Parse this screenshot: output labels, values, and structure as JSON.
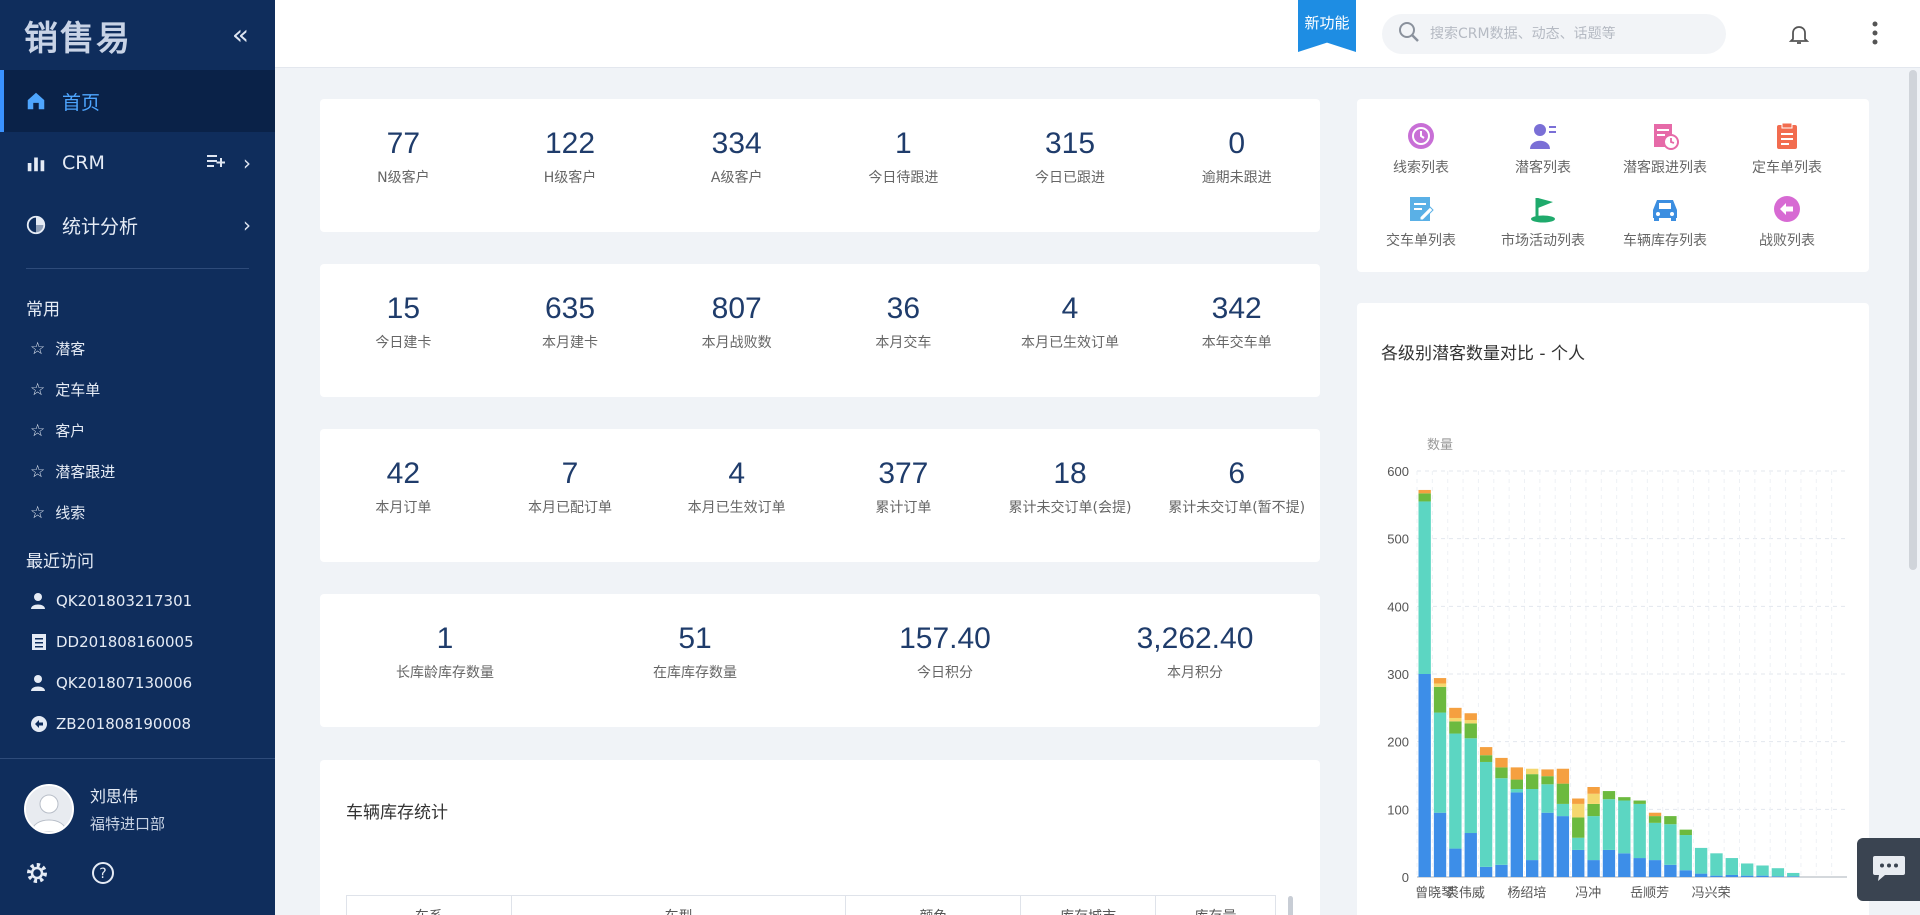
{
  "app": {
    "logo": "销售易",
    "collapse_glyph": "«"
  },
  "nav": {
    "home": "首页",
    "crm": "CRM",
    "analysis": "统计分析"
  },
  "favorites": {
    "title": "常用",
    "items": [
      "潜客",
      "定车单",
      "客户",
      "潜客跟进",
      "线索"
    ]
  },
  "recent": {
    "title": "最近访问",
    "items": [
      {
        "label": "QK201803217301",
        "icon": "person-icon"
      },
      {
        "label": "DD201808160005",
        "icon": "document-icon"
      },
      {
        "label": "QK201807130006",
        "icon": "person-icon"
      },
      {
        "label": "ZB201808190008",
        "icon": "return-icon"
      }
    ]
  },
  "user": {
    "name": "刘思伟",
    "dept": "福特进口部"
  },
  "header": {
    "new_feature": "新功能",
    "search_placeholder": "搜索CRM数据、动态、话题等"
  },
  "stats_rows": [
    [
      {
        "value": "77",
        "label": "N级客户"
      },
      {
        "value": "122",
        "label": "H级客户"
      },
      {
        "value": "334",
        "label": "A级客户"
      },
      {
        "value": "1",
        "label": "今日待跟进"
      },
      {
        "value": "315",
        "label": "今日已跟进"
      },
      {
        "value": "0",
        "label": "逾期未跟进"
      }
    ],
    [
      {
        "value": "15",
        "label": "今日建卡"
      },
      {
        "value": "635",
        "label": "本月建卡"
      },
      {
        "value": "807",
        "label": "本月战败数"
      },
      {
        "value": "36",
        "label": "本月交车"
      },
      {
        "value": "4",
        "label": "本月已生效订单"
      },
      {
        "value": "342",
        "label": "本年交车单"
      }
    ],
    [
      {
        "value": "42",
        "label": "本月订单"
      },
      {
        "value": "7",
        "label": "本月已配订单"
      },
      {
        "value": "4",
        "label": "本月已生效订单"
      },
      {
        "value": "377",
        "label": "累计订单"
      },
      {
        "value": "18",
        "label": "累计未交订单(会提)"
      },
      {
        "value": "6",
        "label": "累计未交订单(暂不提)"
      }
    ],
    [
      {
        "value": "1",
        "label": "长库龄库存数量"
      },
      {
        "value": "51",
        "label": "在库库存数量"
      },
      {
        "value": "157.40",
        "label": "今日积分"
      },
      {
        "value": "3,262.40",
        "label": "本月积分"
      }
    ]
  ],
  "vehicle": {
    "title": "车辆库存统计",
    "columns": [
      "车系",
      "车型",
      "颜色",
      "库存城市",
      "库存量"
    ]
  },
  "quick_links": [
    {
      "label": "线索列表",
      "icon": "clock-circle-icon",
      "color": "#c86fd6"
    },
    {
      "label": "潜客列表",
      "icon": "person-list-icon",
      "color": "#7a6fd6"
    },
    {
      "label": "潜客跟进列表",
      "icon": "doc-clock-icon",
      "color": "#e66aa8"
    },
    {
      "label": "定车单列表",
      "icon": "clipboard-icon",
      "color": "#f26c4f"
    },
    {
      "label": "交车单列表",
      "icon": "edit-doc-icon",
      "color": "#5ab0e6"
    },
    {
      "label": "市场活动列表",
      "icon": "flag-icon",
      "color": "#1faa6c"
    },
    {
      "label": "车辆库存列表",
      "icon": "car-icon",
      "color": "#3c8ee0"
    },
    {
      "label": "战败列表",
      "icon": "back-arrow-icon",
      "color": "#d76ad3"
    }
  ],
  "chart_data": {
    "type": "bar",
    "stacked": true,
    "title": "各级别潜客数量对比 - 个人",
    "ylabel": "数量",
    "ylim": [
      0,
      600
    ],
    "yticks": [
      0,
      100,
      200,
      300,
      400,
      500,
      600
    ],
    "grid": true,
    "categories": [
      "曾晓琴",
      "",
      "裘伟威",
      "",
      "",
      "",
      "杨绍培",
      "",
      "",
      "",
      "冯冲",
      "",
      "",
      "",
      "岳顺芳",
      "",
      "",
      "",
      "冯兴荣",
      "",
      "",
      "",
      "",
      "",
      "",
      "",
      "",
      ""
    ],
    "x_tick_labels": [
      "曾晓琴",
      "裘伟威",
      "杨绍培",
      "冯冲",
      "岳顺芳",
      "冯兴荣"
    ],
    "series": [
      {
        "color": "#3d8ee8",
        "values": [
          300,
          95,
          42,
          65,
          15,
          18,
          125,
          25,
          95,
          90,
          40,
          25,
          40,
          35,
          28,
          25,
          18,
          10,
          5,
          2,
          3,
          2,
          2,
          1,
          1,
          0,
          0,
          0
        ]
      },
      {
        "color": "#5cd6c2",
        "values": [
          255,
          148,
          170,
          140,
          155,
          128,
          5,
          105,
          42,
          18,
          18,
          65,
          75,
          78,
          80,
          55,
          60,
          52,
          38,
          33,
          25,
          18,
          15,
          12,
          5,
          0,
          0,
          0
        ]
      },
      {
        "color": "#6cba3f",
        "values": [
          12,
          38,
          18,
          22,
          10,
          16,
          14,
          22,
          12,
          30,
          30,
          18,
          12,
          5,
          5,
          10,
          12,
          8,
          0,
          0,
          0,
          0,
          0,
          0,
          0,
          0,
          0,
          0
        ]
      },
      {
        "color": "#f5d76e",
        "values": [
          0,
          5,
          5,
          5,
          0,
          0,
          0,
          8,
          0,
          0,
          20,
          15,
          0,
          0,
          0,
          0,
          0,
          0,
          0,
          0,
          0,
          0,
          0,
          0,
          0,
          0,
          0,
          0
        ]
      },
      {
        "color": "#f5a040",
        "values": [
          5,
          8,
          15,
          10,
          12,
          14,
          18,
          0,
          10,
          22,
          8,
          10,
          0,
          0,
          0,
          5,
          0,
          0,
          0,
          0,
          0,
          0,
          0,
          0,
          0,
          0,
          0,
          0
        ]
      }
    ]
  }
}
